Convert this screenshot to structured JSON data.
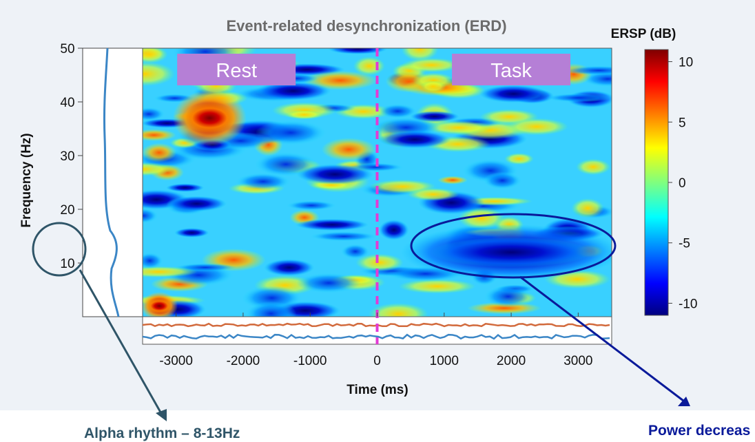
{
  "colors": {
    "panel_bg": "#eef2f7",
    "title": "#6b6b6b",
    "axis_text": "#111111",
    "annotation_teal": "#2f5568",
    "annotation_navy": "#0a1a9a",
    "label_box": "#b57fd6",
    "event_line": "#e23bd5",
    "baseline_orange": "#d26a3c",
    "baseline_blue": "#3b86c6",
    "spectrum_line": "#3b86c6"
  },
  "chart_data": {
    "type": "heatmap",
    "title": "Event-related desynchronization (ERD)",
    "xlabel": "Time (ms)",
    "ylabel": "Frequency (Hz)",
    "xlim": [
      -3500,
      3500
    ],
    "ylim": [
      0,
      50
    ],
    "x_ticks": [
      -3000,
      -2000,
      -1000,
      0,
      1000,
      2000,
      3000
    ],
    "y_ticks": [
      10,
      20,
      30,
      40,
      50
    ],
    "event_time_ms": 0,
    "colorbar": {
      "title": "ERSP (dB)",
      "range": [
        -11,
        11
      ],
      "ticks": [
        10,
        5,
        0,
        -5,
        -10
      ],
      "colormap": "jet"
    },
    "condition_labels": [
      {
        "text": "Rest",
        "x_ms": -2100
      },
      {
        "text": "Task",
        "x_ms": 2000
      }
    ],
    "regions": [
      {
        "name": "late-frequency band power decrease",
        "x_range_ms": [
          500,
          3500
        ],
        "y_range_hz": [
          8,
          16
        ],
        "value_db": -10
      },
      {
        "name": "early gamma increase",
        "x_range_ms": [
          -3000,
          -2000
        ],
        "y_range_hz": [
          33,
          41
        ],
        "value_db": 10
      },
      {
        "name": "low frequency increase",
        "x_range_ms": [
          -3500,
          -3000
        ],
        "y_range_hz": [
          0,
          4
        ],
        "value_db": 10
      }
    ]
  },
  "annotations": {
    "alpha": "Alpha rhythm – 8-13Hz",
    "power": "Power decreas"
  }
}
